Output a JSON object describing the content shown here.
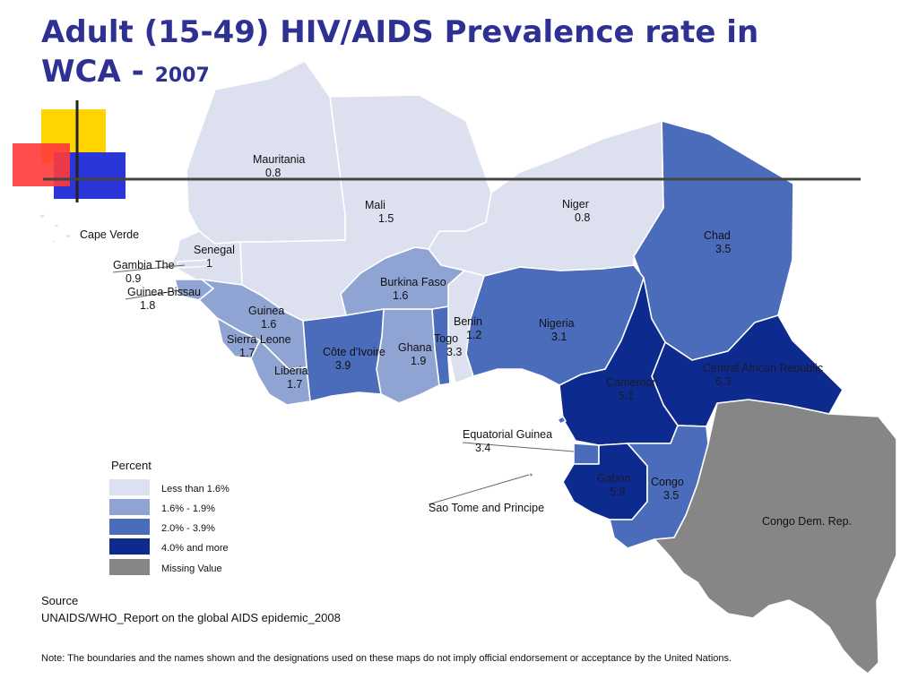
{
  "title": {
    "main": "Adult (15-49) HIV/AIDS Prevalence rate in WCA -",
    "year": "2007"
  },
  "colors": {
    "less_than_1_6": "#dde0ef",
    "range_1_6_1_9": "#8fa4d2",
    "range_2_0_3_9": "#4a6cbb",
    "range_4_0_plus": "#0d2b8e",
    "missing": "#868686",
    "border": "#ffffff"
  },
  "countries": [
    {
      "name": "Mauritania",
      "value": "0.8"
    },
    {
      "name": "Mali",
      "value": "1.5"
    },
    {
      "name": "Niger",
      "value": "0.8"
    },
    {
      "name": "Chad",
      "value": "3.5"
    },
    {
      "name": "Senegal",
      "value": "1"
    },
    {
      "name": "Gambia The",
      "value": "0.9"
    },
    {
      "name": "Guinea-Bissau",
      "value": "1.8"
    },
    {
      "name": "Guinea",
      "value": "1.6"
    },
    {
      "name": "Sierra Leone",
      "value": "1.7"
    },
    {
      "name": "Liberia",
      "value": "1.7"
    },
    {
      "name": "Côte d'Ivoire",
      "value": "3.9"
    },
    {
      "name": "Burkina Faso",
      "value": "1.6"
    },
    {
      "name": "Ghana",
      "value": "1.9"
    },
    {
      "name": "Togo",
      "value": "3.3"
    },
    {
      "name": "Benin",
      "value": "1.2"
    },
    {
      "name": "Nigeria",
      "value": "3.1"
    },
    {
      "name": "Cameroon",
      "value": "5.1"
    },
    {
      "name": "Central African Republic",
      "value": "6.3"
    },
    {
      "name": "Equatorial Guinea",
      "value": "3.4"
    },
    {
      "name": "Gabon",
      "value": "5.9"
    },
    {
      "name": "Congo",
      "value": "3.5"
    },
    {
      "name": "Congo Dem. Rep.",
      "value": ""
    },
    {
      "name": "Cape Verde",
      "value": ""
    },
    {
      "name": "Sao Tome and Principe",
      "value": ""
    }
  ],
  "legend": {
    "title": "Percent",
    "items": [
      {
        "label": "Less than 1.6%",
        "color": "#dde0ef"
      },
      {
        "label": "1.6% - 1.9%",
        "color": "#8fa4d2"
      },
      {
        "label": "2.0% - 3.9%",
        "color": "#4a6cbb"
      },
      {
        "label": "4.0% and more",
        "color": "#0d2b8e"
      },
      {
        "label": "Missing Value",
        "color": "#868686"
      }
    ]
  },
  "source": {
    "heading": "Source",
    "text": "UNAIDS/WHO_Report on the global AIDS epidemic_2008"
  },
  "note": "Note: The boundaries and the names shown and the designations used on these maps do not imply official endorsement or acceptance by the United Nations."
}
